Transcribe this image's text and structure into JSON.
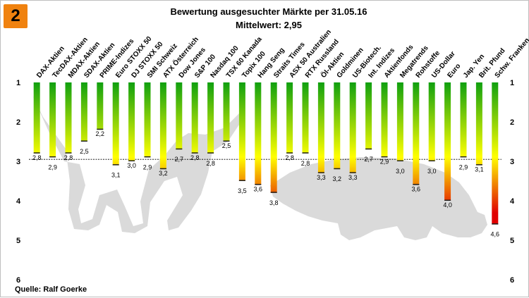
{
  "badge": "2",
  "source": "Quelle: Ralf Goerke",
  "colors": {
    "good": "#10a010",
    "mid": "#ffff00",
    "bad": "#e00000",
    "silhouette": "#dadada"
  },
  "chart_data": {
    "type": "bar",
    "title": "Bewertung ausgesuchter Märkte per 31.05.16",
    "subtitle": "Mittelwert:  2,95",
    "mean": 2.95,
    "ylim": [
      1,
      6
    ],
    "yticks": [
      1,
      2,
      3,
      4,
      5,
      6
    ],
    "y_inverted": true,
    "categories": [
      "DAX-Aktien",
      "TecDAX-Aktien",
      "MDAX-Aktien",
      "SDAX-Aktien",
      "PRIME-Indizes",
      "Euro STOXX 50",
      "DJ STOXX 50",
      "SMI Schweiz",
      "ATX Österreich",
      "Dow Jones",
      "S&P 100",
      "Nasdaq 100",
      "TSX 60 Kanada",
      "Topix 100",
      "Hang Seng",
      "Straits Times",
      "ASX 50 Australien",
      "RTX Russland",
      "Öl-Aktien",
      "Goldminen",
      "US-Biotech.",
      "Int. Indizes",
      "Aktienfonds",
      "Megatrends",
      "Rohstoffe",
      "US-Dollar",
      "Euro",
      "Jap. Yen",
      "Brit. Pfund",
      "Schw. Franken"
    ],
    "values": [
      2.8,
      2.9,
      2.8,
      2.5,
      2.2,
      3.1,
      3.0,
      2.9,
      3.2,
      2.7,
      2.8,
      2.8,
      2.5,
      3.5,
      3.6,
      3.8,
      2.8,
      2.8,
      3.3,
      3.2,
      3.3,
      2.7,
      2.9,
      3.0,
      3.6,
      3.0,
      4.0,
      2.9,
      3.1,
      4.6
    ],
    "value_labels": [
      "2,8",
      "2,9",
      "2,8",
      "2,5",
      "2,2",
      "3,1",
      "3,0",
      "2,9",
      "3,2",
      "2,7",
      "2,8",
      "2,8",
      "2,5",
      "3,5",
      "3,6",
      "3,8",
      "2,8",
      "2,8",
      "3,3",
      "3,2",
      "3,3",
      "2,7",
      "2,9",
      "3,0",
      "3,6",
      "3,0",
      "4,0",
      "2,9",
      "3,1",
      "4,6"
    ],
    "grid": false,
    "legend": "none"
  }
}
